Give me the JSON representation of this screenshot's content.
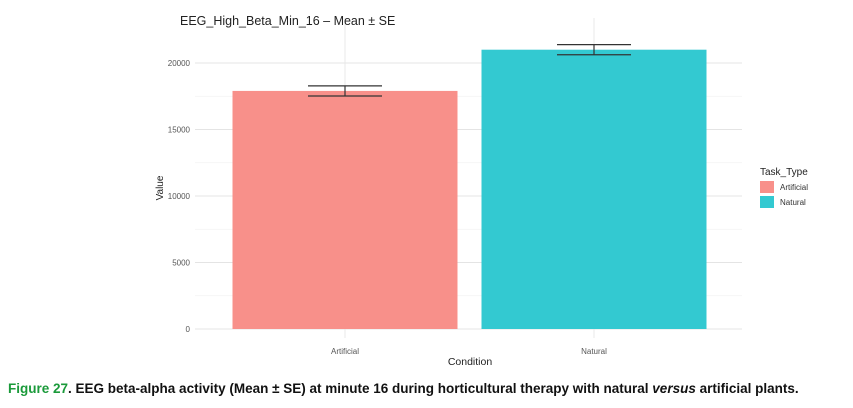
{
  "chart_data": {
    "type": "bar",
    "title": "EEG_High_Beta_Min_16 – Mean ± SE",
    "xlabel": "Condition",
    "ylabel": "Value",
    "categories": [
      "Artificial",
      "Natural"
    ],
    "values": [
      17900,
      21000
    ],
    "errors": [
      380,
      380
    ],
    "ylim": [
      0,
      22000
    ],
    "yticks": [
      0,
      5000,
      10000,
      15000,
      20000
    ],
    "ytick_labels": [
      "0",
      "5000",
      "10000",
      "15000",
      "20000"
    ],
    "grid": true,
    "legend": {
      "title": "Task_Type",
      "placement": "right",
      "entries": [
        "Artificial",
        "Natural"
      ]
    },
    "colors": [
      "#f8908a",
      "#33c9d1"
    ],
    "error_bar_color": "#333333"
  },
  "caption": {
    "label": "Figure 27",
    "text_before": ". EEG beta-alpha activity (Mean ± SE) at minute 16 during horticultural therapy with natural ",
    "emphasis": "versus",
    "text_after": " artificial plants."
  }
}
